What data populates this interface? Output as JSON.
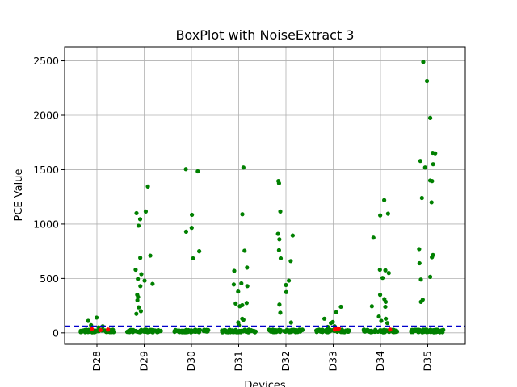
{
  "chart_data": {
    "type": "scatter",
    "title": "BoxPlot with NoiseExtract 3",
    "xlabel": "Devices",
    "ylabel": "PCE Value",
    "categories": [
      "D28",
      "D29",
      "D30",
      "D31",
      "D32",
      "D33",
      "D34",
      "D35"
    ],
    "yticks": [
      0,
      500,
      1000,
      1500,
      2000,
      2500
    ],
    "ylim": [
      -105,
      2630
    ],
    "grid": true,
    "threshold": 60,
    "colors": {
      "points": "#008000",
      "highlight": "#ff0000",
      "threshold": "#0000cc",
      "grid": "#b0b0b0"
    },
    "outliers": [
      [
        140,
        110,
        70,
        60,
        50
      ],
      [
        1345,
        1115,
        1100,
        1045,
        985,
        710,
        690,
        580,
        540,
        495,
        480,
        450,
        430,
        350,
        330,
        300,
        235,
        200,
        175
      ],
      [
        1505,
        1485,
        1085,
        965,
        930,
        750,
        685
      ],
      [
        1520,
        1090,
        755,
        600,
        570,
        455,
        445,
        430,
        380,
        275,
        270,
        255,
        245,
        130,
        120,
        95,
        70
      ],
      [
        1395,
        1375,
        1115,
        910,
        895,
        860,
        760,
        685,
        660,
        480,
        440,
        375,
        260,
        185,
        95
      ],
      [
        240,
        190,
        130,
        100,
        90,
        60,
        55
      ],
      [
        1220,
        1095,
        1080,
        875,
        580,
        575,
        550,
        505,
        350,
        310,
        285,
        245,
        240,
        150,
        130,
        110,
        90
      ],
      [
        2490,
        2315,
        1975,
        1655,
        1650,
        1580,
        1550,
        1520,
        1400,
        1395,
        1240,
        1200,
        770,
        715,
        695,
        640,
        515,
        490,
        305,
        285
      ]
    ],
    "highlight_points": [
      {
        "device": "D28",
        "values": [
          35,
          30,
          25
        ]
      },
      {
        "device": "D33",
        "values": [
          45,
          40,
          35,
          30
        ]
      },
      {
        "device": "D34",
        "values": [
          30
        ]
      }
    ],
    "cluster_range": [
      5,
      30
    ]
  }
}
